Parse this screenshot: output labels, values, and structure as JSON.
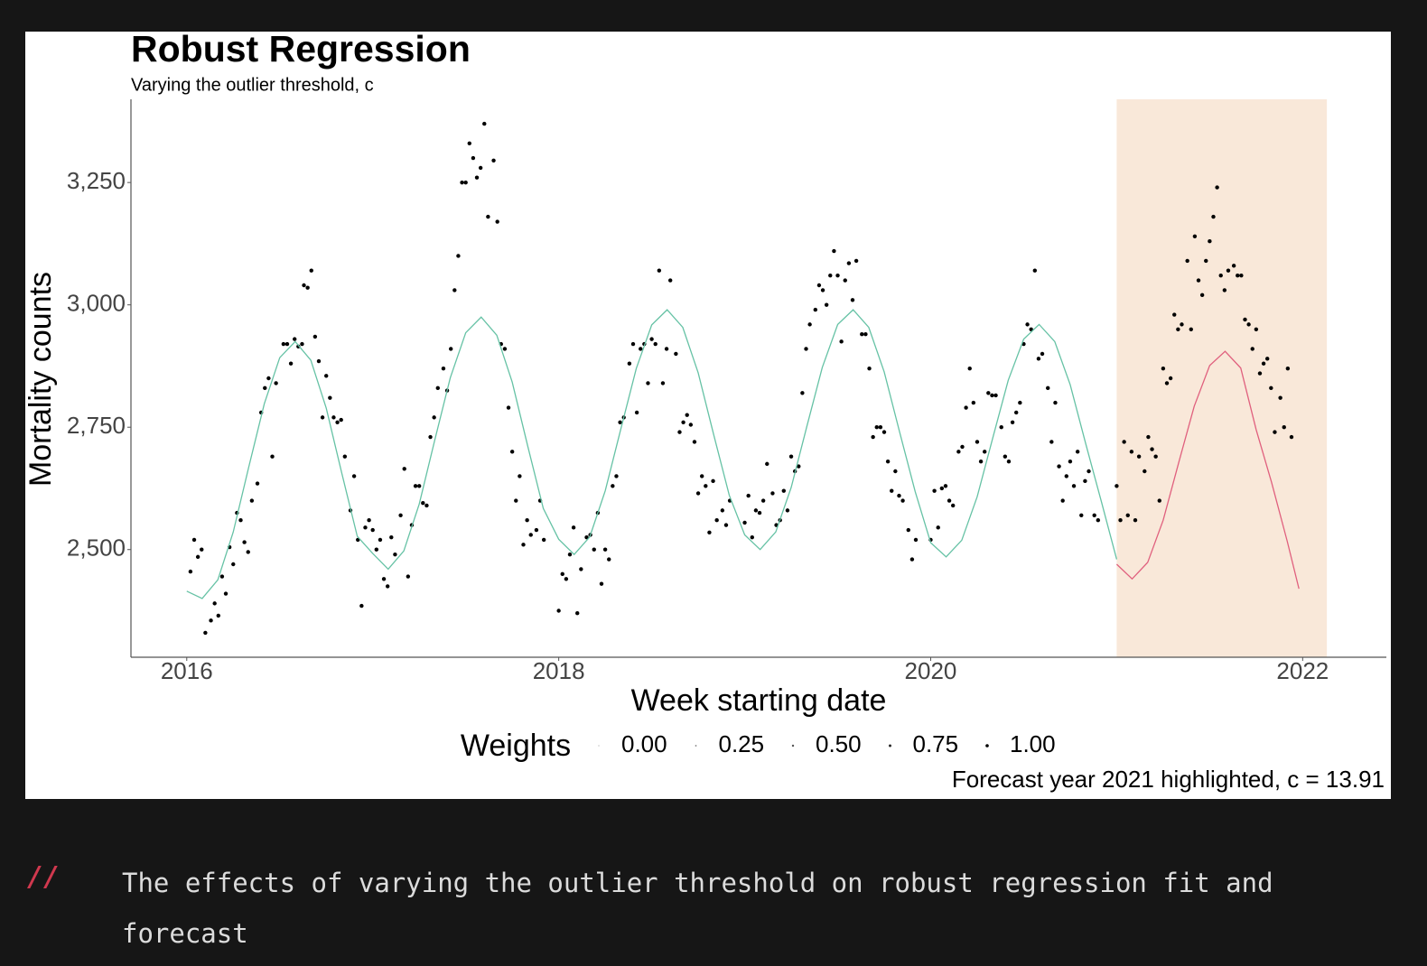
{
  "chart_data": {
    "type": "scatter",
    "title": "Robust Regression",
    "subtitle": "Varying the outlier threshold, c",
    "x_label": "Week starting date",
    "y_label": "Mortality counts",
    "footnote": "Forecast year 2021 highlighted, c = 13.91",
    "xlim": [
      2015.7,
      2022.45
    ],
    "ylim": [
      2280,
      3420
    ],
    "xticks": [
      2016,
      2018,
      2020,
      2022
    ],
    "yticks": [
      {
        "value": 2500,
        "label": "2,500"
      },
      {
        "value": 2750,
        "label": "2,750"
      },
      {
        "value": 3000,
        "label": "3,000"
      },
      {
        "value": 3250,
        "label": "3,250"
      }
    ],
    "grid": false,
    "highlight": {
      "xlim": [
        2021.0,
        2022.13
      ],
      "color": "#f9e8d9"
    },
    "legend": {
      "title": "Weights",
      "position": "bottom",
      "color": "#000000",
      "entries": [
        {
          "value": 0,
          "label": "0.00"
        },
        {
          "value": 0.25,
          "label": "0.25"
        },
        {
          "value": 0.5,
          "label": "0.50"
        },
        {
          "value": 0.75,
          "label": "0.75"
        },
        {
          "value": 1,
          "label": "1.00"
        }
      ]
    },
    "series": [
      {
        "type": "scatter",
        "color": "#000000",
        "x": [
          2016.02,
          2016.04,
          2016.06,
          2016.08,
          2016.1,
          2016.13,
          2016.15,
          2016.17,
          2016.19,
          2016.21,
          2016.23,
          2016.25,
          2016.27,
          2016.29,
          2016.31,
          2016.33,
          2016.35,
          2016.38,
          2016.4,
          2016.42,
          2016.44,
          2016.46,
          2016.48,
          2016.52,
          2016.54,
          2016.56,
          2016.58,
          2016.6,
          2016.62,
          2016.63,
          2016.65,
          2016.67,
          2016.69,
          2016.71,
          2016.73,
          2016.75,
          2016.77,
          2016.79,
          2016.81,
          2016.83,
          2016.85,
          2016.88,
          2016.9,
          2016.92,
          2016.94,
          2016.96,
          2016.98,
          2017.0,
          2017.02,
          2017.04,
          2017.06,
          2017.08,
          2017.1,
          2017.12,
          2017.15,
          2017.17,
          2017.19,
          2017.21,
          2017.23,
          2017.25,
          2017.27,
          2017.29,
          2017.31,
          2017.33,
          2017.35,
          2017.38,
          2017.4,
          2017.42,
          2017.44,
          2017.46,
          2017.48,
          2017.5,
          2017.52,
          2017.54,
          2017.56,
          2017.58,
          2017.6,
          2017.62,
          2017.65,
          2017.67,
          2017.69,
          2017.71,
          2017.73,
          2017.75,
          2017.77,
          2017.79,
          2017.81,
          2017.83,
          2017.85,
          2017.88,
          2017.9,
          2017.92,
          2018.0,
          2018.02,
          2018.04,
          2018.06,
          2018.08,
          2018.1,
          2018.12,
          2018.15,
          2018.17,
          2018.19,
          2018.21,
          2018.23,
          2018.25,
          2018.27,
          2018.29,
          2018.31,
          2018.33,
          2018.35,
          2018.38,
          2018.4,
          2018.42,
          2018.44,
          2018.46,
          2018.48,
          2018.5,
          2018.52,
          2018.54,
          2018.56,
          2018.58,
          2018.6,
          2018.63,
          2018.65,
          2018.67,
          2018.69,
          2018.71,
          2018.73,
          2018.75,
          2018.77,
          2018.79,
          2018.81,
          2018.83,
          2018.85,
          2018.88,
          2018.9,
          2018.92,
          2019.0,
          2019.02,
          2019.04,
          2019.06,
          2019.08,
          2019.1,
          2019.12,
          2019.15,
          2019.17,
          2019.19,
          2019.21,
          2019.23,
          2019.25,
          2019.27,
          2019.29,
          2019.31,
          2019.33,
          2019.35,
          2019.38,
          2019.4,
          2019.42,
          2019.44,
          2019.46,
          2019.48,
          2019.5,
          2019.52,
          2019.54,
          2019.56,
          2019.58,
          2019.6,
          2019.63,
          2019.65,
          2019.67,
          2019.69,
          2019.71,
          2019.73,
          2019.75,
          2019.77,
          2019.79,
          2019.81,
          2019.83,
          2019.85,
          2019.88,
          2019.9,
          2019.92,
          2020.0,
          2020.02,
          2020.04,
          2020.06,
          2020.08,
          2020.1,
          2020.12,
          2020.15,
          2020.17,
          2020.19,
          2020.21,
          2020.23,
          2020.25,
          2020.27,
          2020.29,
          2020.31,
          2020.33,
          2020.35,
          2020.38,
          2020.4,
          2020.42,
          2020.44,
          2020.46,
          2020.48,
          2020.5,
          2020.52,
          2020.54,
          2020.56,
          2020.58,
          2020.6,
          2020.63,
          2020.65,
          2020.67,
          2020.69,
          2020.71,
          2020.73,
          2020.75,
          2020.77,
          2020.79,
          2020.81,
          2020.83,
          2020.85,
          2020.88,
          2020.9,
          2021.0,
          2021.02,
          2021.04,
          2021.06,
          2021.08,
          2021.1,
          2021.12,
          2021.15,
          2021.17,
          2021.19,
          2021.21,
          2021.23,
          2021.25,
          2021.27,
          2021.29,
          2021.31,
          2021.33,
          2021.35,
          2021.38,
          2021.4,
          2021.42,
          2021.44,
          2021.46,
          2021.48,
          2021.5,
          2021.52,
          2021.54,
          2021.56,
          2021.58,
          2021.6,
          2021.63,
          2021.65,
          2021.67,
          2021.69,
          2021.71,
          2021.73,
          2021.75,
          2021.77,
          2021.79,
          2021.81,
          2021.83,
          2021.85,
          2021.88,
          2021.9,
          2021.92,
          2021.94
        ],
        "values": [
          2455,
          2520,
          2485,
          2500,
          2330,
          2355,
          2390,
          2365,
          2445,
          2410,
          2505,
          2470,
          2575,
          2560,
          2515,
          2495,
          2600,
          2635,
          2780,
          2830,
          2850,
          2690,
          2840,
          2920,
          2920,
          2880,
          2930,
          2915,
          2920,
          3040,
          3035,
          3070,
          2935,
          2885,
          2770,
          2855,
          2810,
          2770,
          2760,
          2765,
          2690,
          2580,
          2650,
          2520,
          2385,
          2545,
          2560,
          2540,
          2500,
          2520,
          2440,
          2425,
          2525,
          2490,
          2570,
          2665,
          2445,
          2550,
          2630,
          2630,
          2595,
          2590,
          2730,
          2770,
          2830,
          2870,
          2825,
          2910,
          3030,
          3100,
          3250,
          3250,
          3330,
          3300,
          3260,
          3280,
          3370,
          3180,
          3295,
          3170,
          2920,
          2910,
          2790,
          2700,
          2600,
          2650,
          2510,
          2560,
          2530,
          2540,
          2600,
          2520,
          2375,
          2450,
          2440,
          2490,
          2545,
          2370,
          2460,
          2525,
          2530,
          2500,
          2575,
          2430,
          2500,
          2480,
          2630,
          2650,
          2760,
          2770,
          2880,
          2920,
          2780,
          2910,
          2920,
          2840,
          2930,
          2920,
          3070,
          2840,
          2910,
          3050,
          2900,
          2740,
          2760,
          2775,
          2755,
          2720,
          2615,
          2650,
          2630,
          2535,
          2640,
          2560,
          2580,
          2550,
          2600,
          2555,
          2610,
          2525,
          2580,
          2575,
          2600,
          2675,
          2615,
          2550,
          2560,
          2620,
          2580,
          2690,
          2660,
          2670,
          2820,
          2910,
          2960,
          2990,
          3040,
          3030,
          3000,
          3060,
          3110,
          3060,
          2925,
          3050,
          3085,
          3010,
          3090,
          2940,
          2940,
          2870,
          2730,
          2750,
          2750,
          2740,
          2680,
          2620,
          2660,
          2610,
          2600,
          2540,
          2480,
          2520,
          2520,
          2620,
          2545,
          2625,
          2630,
          2600,
          2590,
          2700,
          2710,
          2790,
          2870,
          2800,
          2720,
          2680,
          2700,
          2820,
          2815,
          2815,
          2750,
          2690,
          2680,
          2760,
          2780,
          2800,
          2920,
          2960,
          2950,
          3070,
          2890,
          2900,
          2830,
          2720,
          2800,
          2670,
          2600,
          2650,
          2680,
          2630,
          2700,
          2570,
          2640,
          2660,
          2570,
          2560,
          2630,
          2560,
          2720,
          2570,
          2700,
          2560,
          2690,
          2660,
          2730,
          2705,
          2690,
          2600,
          2870,
          2840,
          2850,
          2980,
          2950,
          2960,
          3090,
          2950,
          3140,
          3050,
          3020,
          3090,
          3130,
          3180,
          3240,
          3060,
          3030,
          3070,
          3080,
          3060,
          3060,
          2970,
          2960,
          2910,
          2950,
          2860,
          2880,
          2890,
          2830,
          2740,
          2810,
          2750,
          2870,
          2730
        ]
      },
      {
        "type": "line",
        "color": "#66c2a5",
        "x": [
          2016,
          2016.083,
          2016.167,
          2016.25,
          2016.333,
          2016.417,
          2016.5,
          2016.583,
          2016.667,
          2016.75,
          2016.833,
          2016.917,
          2017,
          2017.083,
          2017.167,
          2017.25,
          2017.333,
          2017.417,
          2017.5,
          2017.583,
          2017.667,
          2017.75,
          2017.833,
          2017.917,
          2018,
          2018.083,
          2018.167,
          2018.25,
          2018.333,
          2018.417,
          2018.5,
          2018.583,
          2018.667,
          2018.75,
          2018.833,
          2018.917,
          2019,
          2019.083,
          2019.167,
          2019.25,
          2019.333,
          2019.417,
          2019.5,
          2019.583,
          2019.667,
          2019.75,
          2019.833,
          2019.917,
          2020,
          2020.083,
          2020.167,
          2020.25,
          2020.333,
          2020.417,
          2020.5,
          2020.583,
          2020.667,
          2020.75,
          2020.833,
          2020.917,
          2021
        ],
        "values": [
          2415,
          2400,
          2438,
          2536,
          2668,
          2798,
          2892,
          2925,
          2887,
          2789,
          2657,
          2527,
          2492,
          2460,
          2497,
          2593,
          2723,
          2851,
          2943,
          2975,
          2938,
          2842,
          2712,
          2584,
          2521,
          2490,
          2526,
          2620,
          2745,
          2870,
          2959,
          2990,
          2954,
          2861,
          2735,
          2611,
          2530,
          2500,
          2536,
          2627,
          2750,
          2872,
          2960,
          2990,
          2954,
          2863,
          2740,
          2618,
          2514,
          2485,
          2519,
          2608,
          2727,
          2846,
          2930,
          2960,
          2925,
          2837,
          2717,
          2599,
          2480
        ]
      },
      {
        "type": "line",
        "color": "#e0607e",
        "x": [
          2021,
          2021.083,
          2021.167,
          2021.25,
          2021.333,
          2021.417,
          2021.5,
          2021.583,
          2021.667,
          2021.75,
          2021.833,
          2021.917,
          2021.98
        ],
        "values": [
          2470,
          2440,
          2474,
          2560,
          2677,
          2793,
          2876,
          2905,
          2871,
          2745,
          2637,
          2517,
          2420
        ]
      }
    ]
  },
  "caption": {
    "marker": "//",
    "text": "The effects of varying the outlier threshold on robust regression fit and forecast"
  }
}
